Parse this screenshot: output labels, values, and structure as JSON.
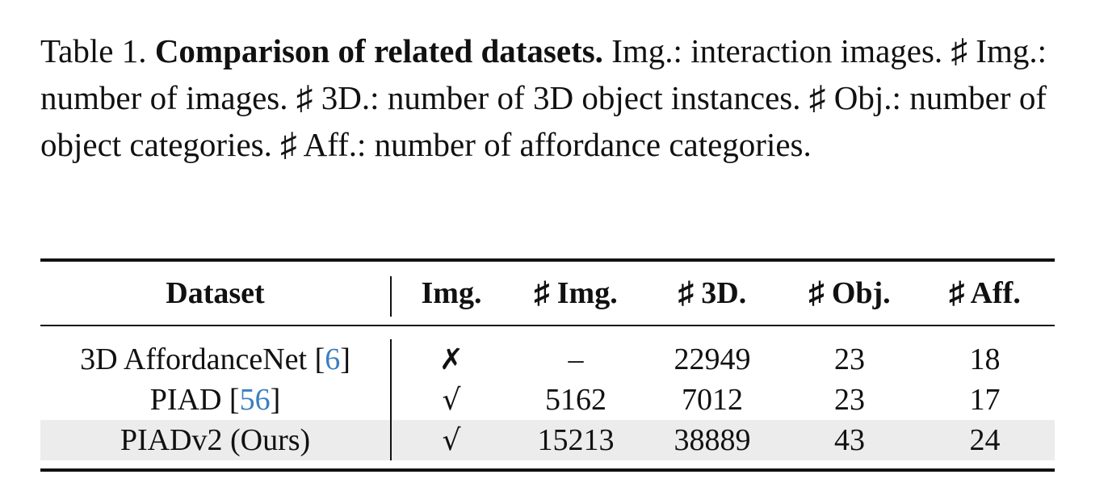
{
  "caption": {
    "label": "Table 1.",
    "title": "Comparison of related datasets.",
    "body": "Img.: interaction images. ♯ Img.: number of images. ♯ 3D.: number of 3D object instances. ♯ Obj.: number of object categories. ♯ Aff.: number of affordance categories."
  },
  "table": {
    "headers": {
      "dataset": "Dataset",
      "img": "Img.",
      "num_img": "♯ Img.",
      "num_3d": "♯ 3D.",
      "num_obj": "♯ Obj.",
      "num_aff": "♯ Aff."
    },
    "rows": [
      {
        "dataset_name": "3D AffordanceNet [",
        "citation": "6",
        "dataset_close": "]",
        "img": "✗",
        "num_img": "–",
        "num_3d": "22949",
        "num_obj": "23",
        "num_aff": "18"
      },
      {
        "dataset_name": "PIAD [",
        "citation": "56",
        "dataset_close": "]",
        "img": "√",
        "num_img": "5162",
        "num_3d": "7012",
        "num_obj": "23",
        "num_aff": "17"
      },
      {
        "dataset_name": "PIADv2 (Ours)",
        "citation": "",
        "dataset_close": "",
        "img": "√",
        "num_img": "15213",
        "num_3d": "38889",
        "num_obj": "43",
        "num_aff": "24"
      }
    ],
    "highlight_color": "#ececec",
    "citation_color": "#3a7fbf"
  }
}
